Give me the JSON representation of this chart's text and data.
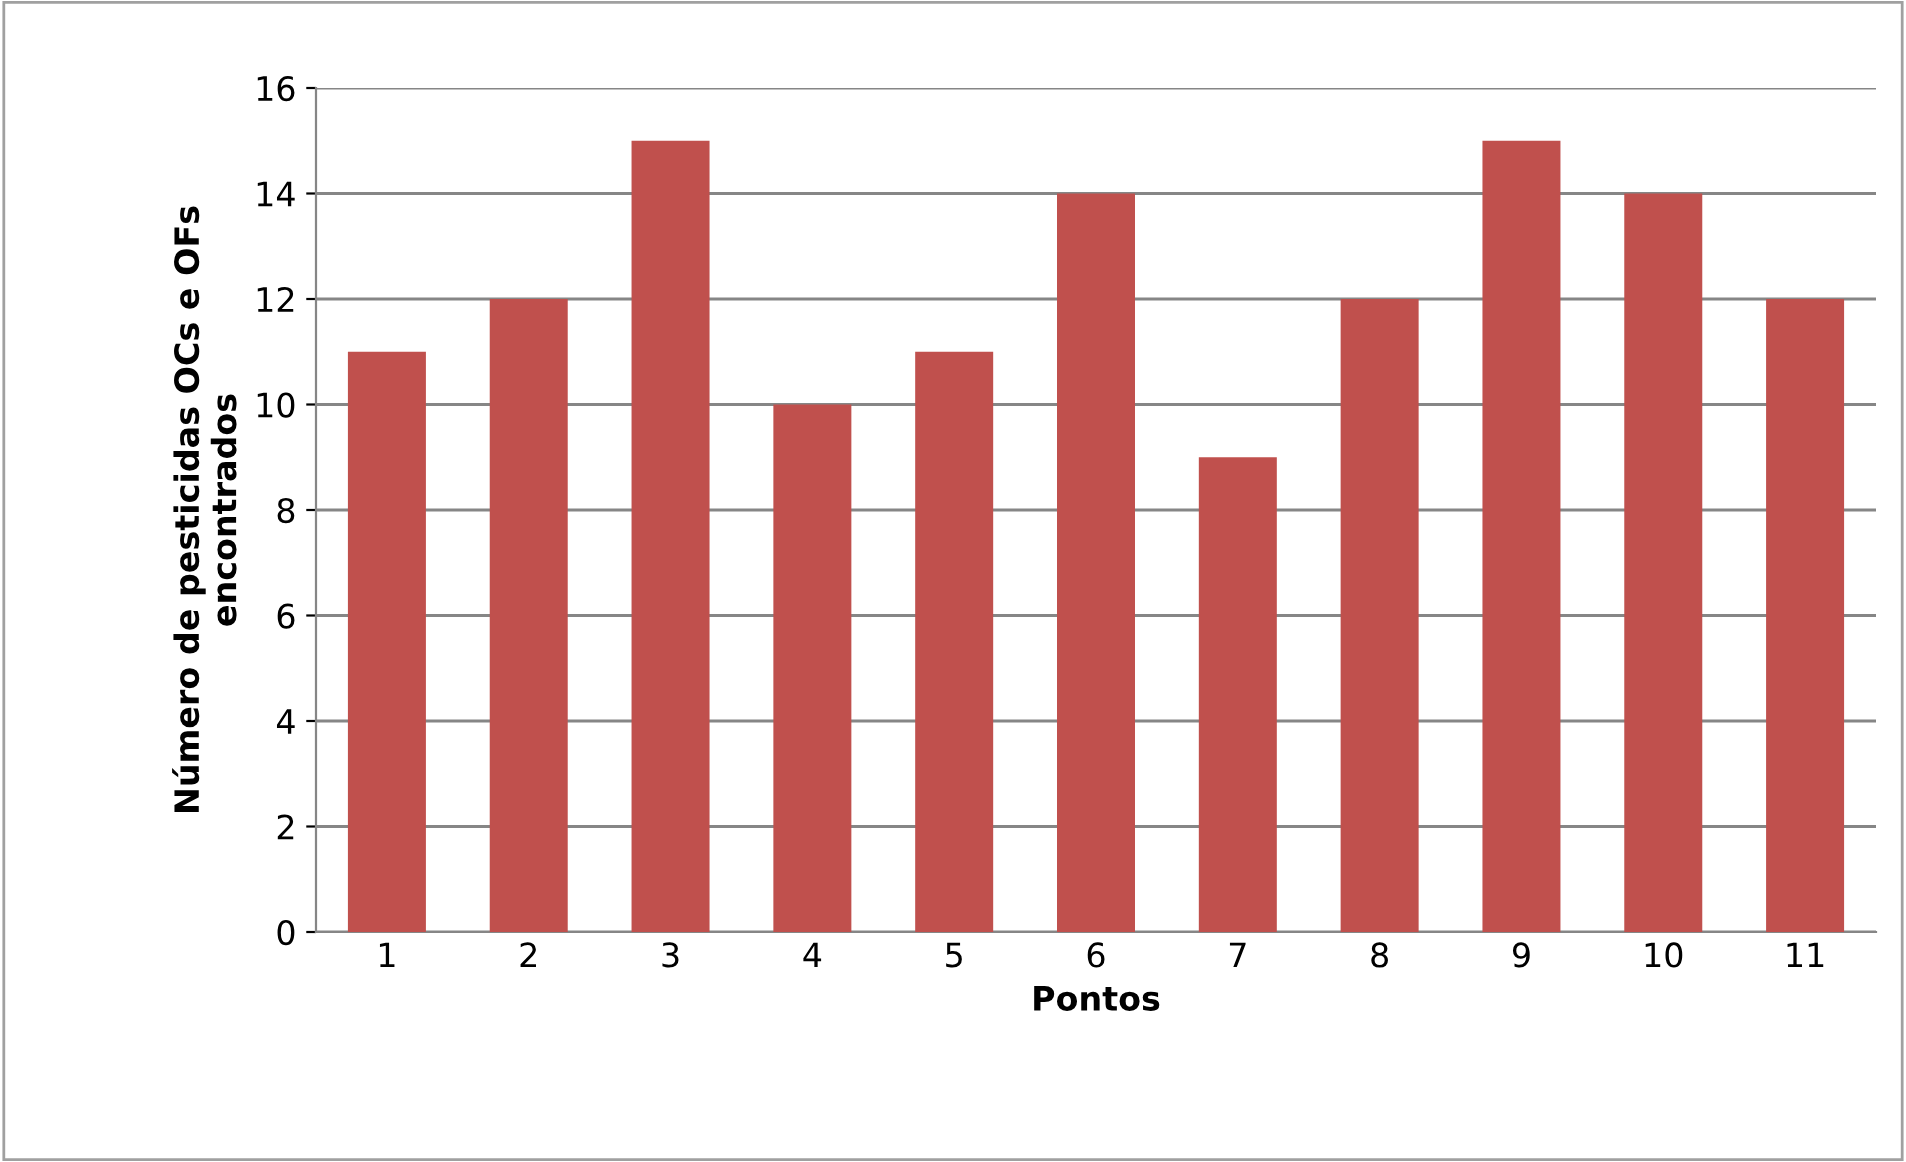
{
  "chart_data": {
    "type": "bar",
    "xlabel": "Pontos",
    "ylabel": "Número de pesticidas OCs e OFs\nencontrados",
    "categories": [
      "1",
      "2",
      "3",
      "4",
      "5",
      "6",
      "7",
      "8",
      "9",
      "10",
      "11"
    ],
    "values": [
      11,
      12,
      15,
      10,
      11,
      14,
      9,
      12,
      15,
      14,
      12
    ],
    "color": "#c0504d",
    "ylim": [
      0,
      16
    ],
    "yticks": [
      0,
      2,
      4,
      6,
      8,
      10,
      12,
      14,
      16
    ],
    "grid": "y"
  }
}
